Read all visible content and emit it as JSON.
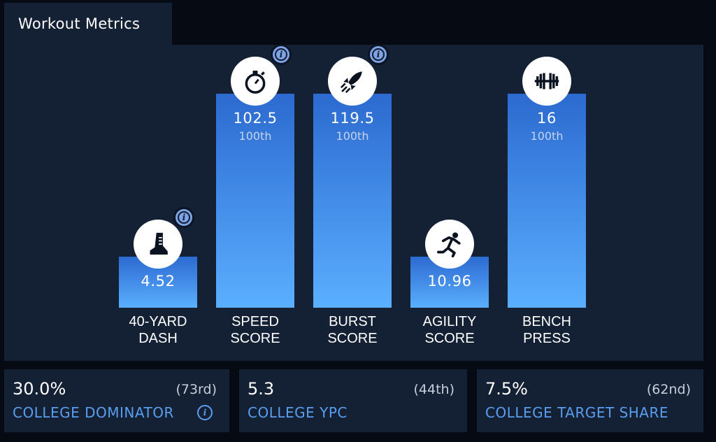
{
  "header": {
    "title": "Workout Metrics"
  },
  "chart_data": {
    "type": "bar",
    "title": "",
    "categories": [
      "40-YARD DASH",
      "SPEED SCORE",
      "BURST SCORE",
      "AGILITY SCORE",
      "BENCH PRESS"
    ],
    "category_lines": [
      [
        "40-YARD",
        "DASH"
      ],
      [
        "SPEED",
        "SCORE"
      ],
      [
        "BURST",
        "SCORE"
      ],
      [
        "AGILITY",
        "SCORE"
      ],
      [
        "BENCH",
        "PRESS"
      ]
    ],
    "values": [
      "4.52",
      "102.5",
      "119.5",
      "10.96",
      "16"
    ],
    "percentiles": [
      "",
      "100th",
      "100th",
      "",
      "100th"
    ],
    "bar_levels": [
      0.24,
      1.0,
      1.0,
      0.24,
      1.0
    ],
    "icons": [
      "running-shoe-icon",
      "stopwatch-icon",
      "rocket-icon",
      "sprinter-icon",
      "barbell-icon"
    ],
    "info": [
      true,
      true,
      true,
      false,
      false
    ],
    "colors": {
      "bar_top": "#2c6ad0",
      "bar_bottom": "#5aafff",
      "label": "#ffffff",
      "percentile": "#c5d4ea"
    }
  },
  "stats": [
    {
      "value": "30.0%",
      "rank": "(73rd)",
      "label": "COLLEGE DOMINATOR",
      "info": true
    },
    {
      "value": "5.3",
      "rank": "(44th)",
      "label": "COLLEGE YPC",
      "info": false
    },
    {
      "value": "7.5%",
      "rank": "(62nd)",
      "label": "COLLEGE TARGET SHARE",
      "info": false
    }
  ],
  "info_glyph": "i"
}
